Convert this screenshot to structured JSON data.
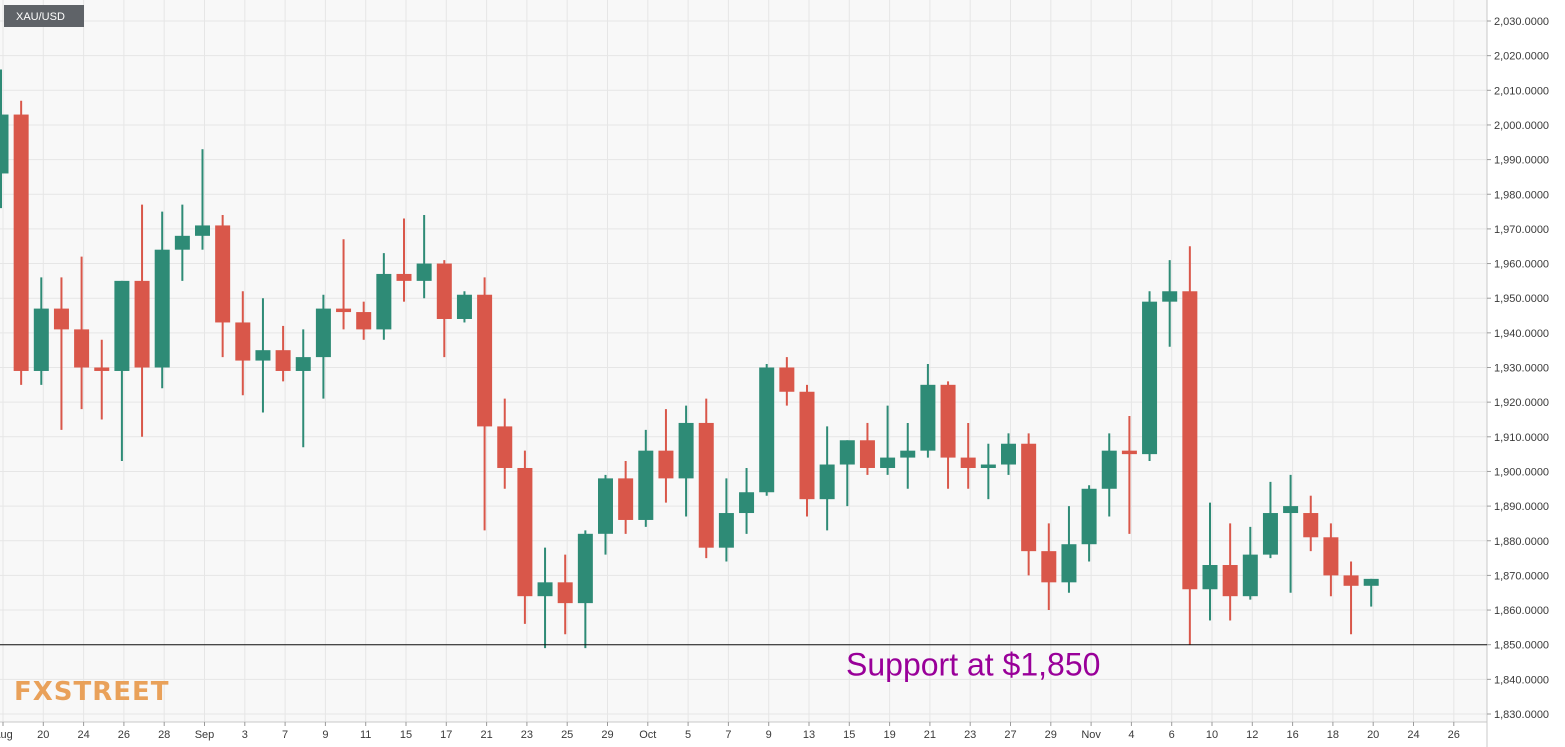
{
  "chart_data": {
    "type": "candlestick",
    "symbol": "XAU/USD",
    "ylim": [
      1825,
      2035
    ],
    "y_ticks": [
      1830,
      1840,
      1850,
      1860,
      1870,
      1880,
      1890,
      1900,
      1910,
      1920,
      1930,
      1940,
      1950,
      1960,
      1970,
      1980,
      1990,
      2000,
      2010,
      2020,
      2030
    ],
    "y_tick_labels": [
      "1,830.0000",
      "1,840.0000",
      "1,850.0000",
      "1,860.0000",
      "1,870.0000",
      "1,880.0000",
      "1,890.0000",
      "1,900.0000",
      "1,910.0000",
      "1,920.0000",
      "1,930.0000",
      "1,940.0000",
      "1,950.0000",
      "1,960.0000",
      "1,970.0000",
      "1,980.0000",
      "1,990.0000",
      "2,000.0000",
      "2,010.0000",
      "2,020.0000",
      "2,030.0000"
    ],
    "x_ticks": [
      "Aug",
      "20",
      "24",
      "26",
      "28",
      "Sep",
      "3",
      "7",
      "9",
      "11",
      "15",
      "17",
      "21",
      "23",
      "25",
      "29",
      "Oct",
      "5",
      "7",
      "9",
      "13",
      "15",
      "19",
      "21",
      "23",
      "27",
      "29",
      "Nov",
      "4",
      "6",
      "10",
      "12",
      "16",
      "18",
      "20",
      "24",
      "26"
    ],
    "grid": true,
    "candles": [
      {
        "open": 1986,
        "high": 2016,
        "low": 1976,
        "close": 2003
      },
      {
        "open": 2003,
        "high": 2007,
        "low": 1925,
        "close": 1929
      },
      {
        "open": 1929,
        "high": 1956,
        "low": 1925,
        "close": 1947
      },
      {
        "open": 1947,
        "high": 1956,
        "low": 1912,
        "close": 1941
      },
      {
        "open": 1941,
        "high": 1962,
        "low": 1918,
        "close": 1930
      },
      {
        "open": 1930,
        "high": 1938,
        "low": 1915,
        "close": 1929
      },
      {
        "open": 1929,
        "high": 1955,
        "low": 1903,
        "close": 1955
      },
      {
        "open": 1955,
        "high": 1977,
        "low": 1910,
        "close": 1930
      },
      {
        "open": 1930,
        "high": 1975,
        "low": 1924,
        "close": 1964
      },
      {
        "open": 1964,
        "high": 1977,
        "low": 1955,
        "close": 1968
      },
      {
        "open": 1968,
        "high": 1993,
        "low": 1964,
        "close": 1971
      },
      {
        "open": 1971,
        "high": 1974,
        "low": 1933,
        "close": 1943
      },
      {
        "open": 1943,
        "high": 1952,
        "low": 1922,
        "close": 1932
      },
      {
        "open": 1932,
        "high": 1950,
        "low": 1917,
        "close": 1935
      },
      {
        "open": 1935,
        "high": 1942,
        "low": 1926,
        "close": 1929
      },
      {
        "open": 1929,
        "high": 1941,
        "low": 1907,
        "close": 1933
      },
      {
        "open": 1933,
        "high": 1951,
        "low": 1921,
        "close": 1947
      },
      {
        "open": 1947,
        "high": 1967,
        "low": 1941,
        "close": 1946
      },
      {
        "open": 1946,
        "high": 1949,
        "low": 1938,
        "close": 1941
      },
      {
        "open": 1941,
        "high": 1963,
        "low": 1938,
        "close": 1957
      },
      {
        "open": 1957,
        "high": 1973,
        "low": 1949,
        "close": 1955
      },
      {
        "open": 1955,
        "high": 1974,
        "low": 1950,
        "close": 1960
      },
      {
        "open": 1960,
        "high": 1961,
        "low": 1933,
        "close": 1944
      },
      {
        "open": 1944,
        "high": 1952,
        "low": 1943,
        "close": 1951
      },
      {
        "open": 1951,
        "high": 1956,
        "low": 1883,
        "close": 1913
      },
      {
        "open": 1913,
        "high": 1921,
        "low": 1895,
        "close": 1901
      },
      {
        "open": 1901,
        "high": 1906,
        "low": 1856,
        "close": 1864
      },
      {
        "open": 1864,
        "high": 1878,
        "low": 1849,
        "close": 1868
      },
      {
        "open": 1868,
        "high": 1876,
        "low": 1853,
        "close": 1862
      },
      {
        "open": 1862,
        "high": 1883,
        "low": 1849,
        "close": 1882
      },
      {
        "open": 1882,
        "high": 1899,
        "low": 1876,
        "close": 1898
      },
      {
        "open": 1898,
        "high": 1903,
        "low": 1882,
        "close": 1886
      },
      {
        "open": 1886,
        "high": 1912,
        "low": 1884,
        "close": 1906
      },
      {
        "open": 1906,
        "high": 1918,
        "low": 1891,
        "close": 1898
      },
      {
        "open": 1898,
        "high": 1919,
        "low": 1887,
        "close": 1914
      },
      {
        "open": 1914,
        "high": 1921,
        "low": 1875,
        "close": 1878
      },
      {
        "open": 1878,
        "high": 1898,
        "low": 1874,
        "close": 1888
      },
      {
        "open": 1888,
        "high": 1901,
        "low": 1882,
        "close": 1894
      },
      {
        "open": 1894,
        "high": 1931,
        "low": 1893,
        "close": 1930
      },
      {
        "open": 1930,
        "high": 1933,
        "low": 1919,
        "close": 1923
      },
      {
        "open": 1923,
        "high": 1925,
        "low": 1887,
        "close": 1892
      },
      {
        "open": 1892,
        "high": 1913,
        "low": 1883,
        "close": 1902
      },
      {
        "open": 1902,
        "high": 1909,
        "low": 1890,
        "close": 1909
      },
      {
        "open": 1909,
        "high": 1914,
        "low": 1899,
        "close": 1901
      },
      {
        "open": 1901,
        "high": 1919,
        "low": 1899,
        "close": 1904
      },
      {
        "open": 1904,
        "high": 1914,
        "low": 1895,
        "close": 1906
      },
      {
        "open": 1906,
        "high": 1931,
        "low": 1904,
        "close": 1925
      },
      {
        "open": 1925,
        "high": 1926,
        "low": 1895,
        "close": 1904
      },
      {
        "open": 1904,
        "high": 1914,
        "low": 1895,
        "close": 1901
      },
      {
        "open": 1901,
        "high": 1908,
        "low": 1892,
        "close": 1902
      },
      {
        "open": 1902,
        "high": 1911,
        "low": 1899,
        "close": 1908
      },
      {
        "open": 1908,
        "high": 1911,
        "low": 1870,
        "close": 1877
      },
      {
        "open": 1877,
        "high": 1885,
        "low": 1860,
        "close": 1868
      },
      {
        "open": 1868,
        "high": 1890,
        "low": 1865,
        "close": 1879
      },
      {
        "open": 1879,
        "high": 1896,
        "low": 1874,
        "close": 1895
      },
      {
        "open": 1895,
        "high": 1911,
        "low": 1887,
        "close": 1906
      },
      {
        "open": 1906,
        "high": 1916,
        "low": 1882,
        "close": 1905
      },
      {
        "open": 1905,
        "high": 1952,
        "low": 1903,
        "close": 1949
      },
      {
        "open": 1949,
        "high": 1961,
        "low": 1936,
        "close": 1952
      },
      {
        "open": 1952,
        "high": 1965,
        "low": 1850,
        "close": 1866
      },
      {
        "open": 1866,
        "high": 1891,
        "low": 1857,
        "close": 1873
      },
      {
        "open": 1873,
        "high": 1885,
        "low": 1857,
        "close": 1864
      },
      {
        "open": 1864,
        "high": 1884,
        "low": 1863,
        "close": 1876
      },
      {
        "open": 1876,
        "high": 1897,
        "low": 1875,
        "close": 1888
      },
      {
        "open": 1888,
        "high": 1899,
        "low": 1865,
        "close": 1890
      },
      {
        "open": 1888,
        "high": 1893,
        "low": 1877,
        "close": 1881
      },
      {
        "open": 1881,
        "high": 1885,
        "low": 1864,
        "close": 1870
      },
      {
        "open": 1870,
        "high": 1874,
        "low": 1853,
        "close": 1867
      },
      {
        "open": 1867,
        "high": 1869,
        "low": 1861,
        "close": 1869
      }
    ],
    "support_level": 1850,
    "annotation": "Support at $1,850",
    "annotation_color": "#990099",
    "bull_color": "#2e8b76",
    "bear_color": "#d9574a",
    "logo": "FXSTREET"
  }
}
